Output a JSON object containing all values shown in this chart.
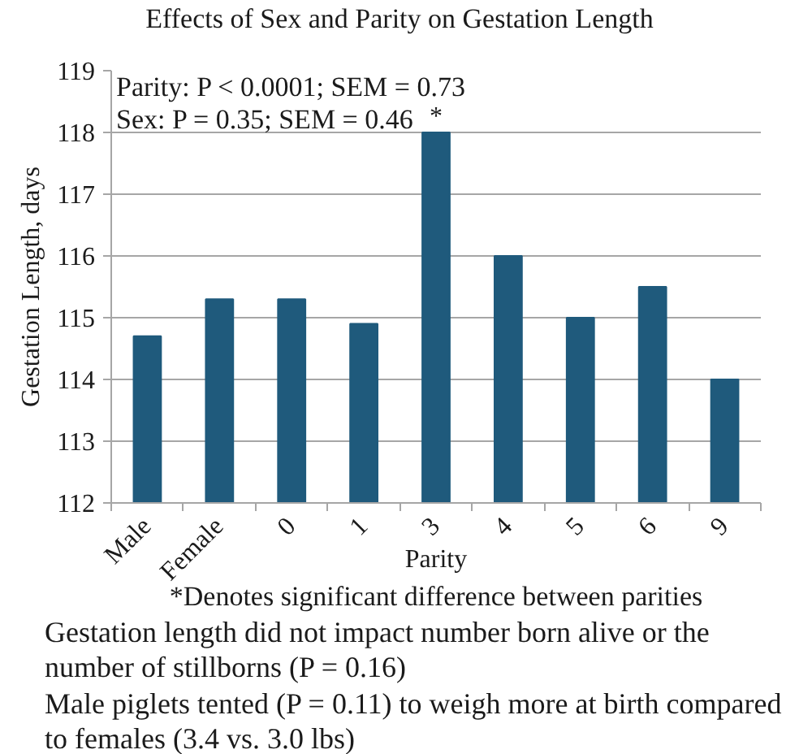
{
  "chart_data": {
    "type": "bar",
    "title": "Effects of Sex and Parity on Gestation Length",
    "xlabel": "Parity",
    "ylabel": "Gestation Length, days",
    "categories": [
      "Male",
      "Female",
      "0",
      "1",
      "3",
      "4",
      "5",
      "6",
      "9"
    ],
    "values": [
      114.7,
      115.3,
      115.3,
      114.9,
      118,
      116,
      115,
      115.5,
      114
    ],
    "color": "#1f5a7c",
    "ylim": [
      112,
      119
    ],
    "yticks": [
      112,
      113,
      114,
      115,
      116,
      117,
      118,
      119
    ],
    "grid": "y",
    "annotations": [
      "Parity: P < 0.0001; SEM = 0.73",
      "Sex: P = 0.35; SEM = 0.46",
      {
        "text": "*",
        "x": "3",
        "y": 118
      },
      "*Denotes significant difference between parities",
      "Gestation length did not impact number born alive or the number of stillborns (P = 0.16)",
      "Male piglets tented (P = 0.11) to weigh more at birth compared to females (3.4 vs. 3.0 lbs)"
    ]
  }
}
